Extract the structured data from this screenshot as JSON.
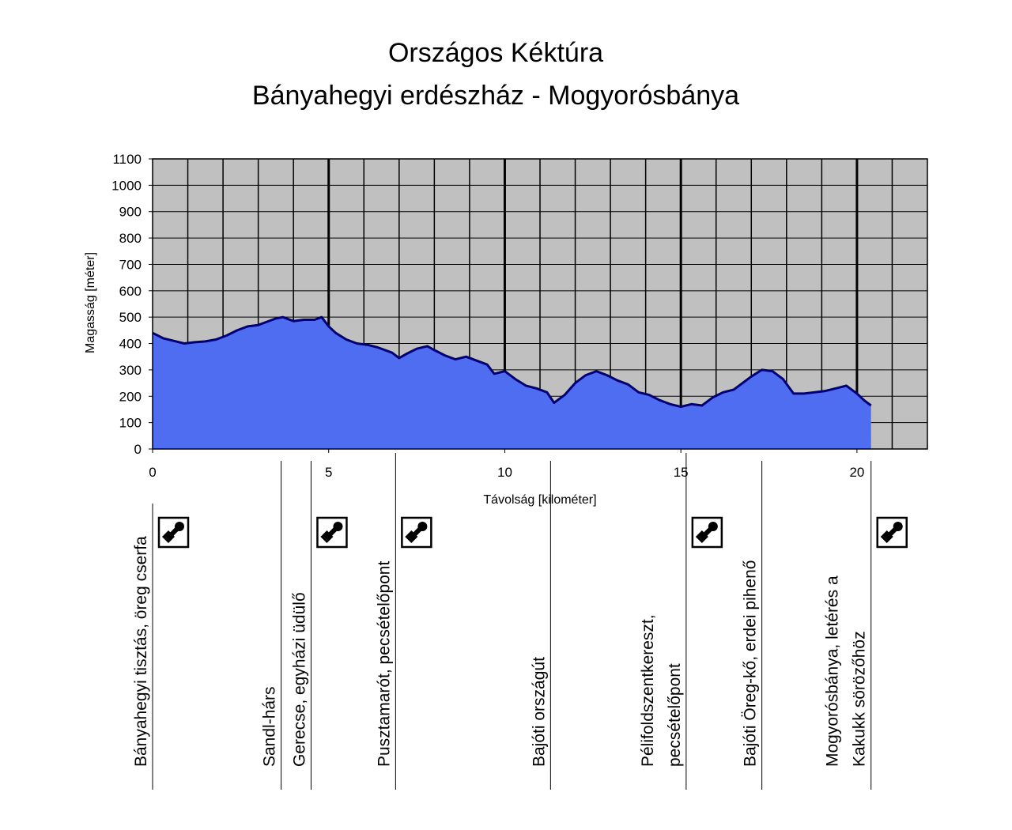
{
  "chart_data": {
    "type": "area",
    "title": "Országos Kéktúra",
    "subtitle": "Bányahegyi erdészház - Mogyorósbánya",
    "xlabel": "Távolság [kilométer]",
    "ylabel": "Magasság [méter]",
    "xlim": [
      0,
      22
    ],
    "ylim": [
      0,
      1100
    ],
    "xticks": [
      0,
      5,
      10,
      15,
      20
    ],
    "yticks": [
      0,
      100,
      200,
      300,
      400,
      500,
      600,
      700,
      800,
      900,
      1000,
      1100
    ],
    "grid": "on",
    "colors": {
      "plot_bg": "#c0c0c0",
      "fill": "#4f6df0",
      "line": "#00007a",
      "grid": "#000000"
    },
    "series": [
      {
        "x": [
          0,
          0.3,
          0.6,
          0.9,
          1.2,
          1.5,
          1.8,
          2.1,
          2.4,
          2.7,
          3.0,
          3.2,
          3.5,
          3.7,
          4.0,
          4.3,
          4.6,
          4.8,
          5.0,
          5.2,
          5.5,
          5.8,
          6.1,
          6.4,
          6.8,
          7.0,
          7.2,
          7.5,
          7.8,
          8.0,
          8.3,
          8.6,
          8.9,
          9.2,
          9.5,
          9.7,
          10.0,
          10.3,
          10.6,
          10.9,
          11.2,
          11.4,
          11.7,
          12.0,
          12.3,
          12.6,
          12.9,
          13.2,
          13.5,
          13.8,
          14.1,
          14.4,
          14.7,
          15.0,
          15.3,
          15.6,
          15.9,
          16.2,
          16.5,
          16.8,
          17.0,
          17.3,
          17.6,
          17.9,
          18.2,
          18.5,
          18.8,
          19.1,
          19.4,
          19.7,
          20.0,
          20.2,
          20.4
        ],
        "y": [
          440,
          420,
          410,
          400,
          405,
          408,
          415,
          430,
          450,
          465,
          470,
          480,
          495,
          500,
          485,
          490,
          490,
          500,
          465,
          440,
          415,
          400,
          395,
          385,
          365,
          345,
          360,
          380,
          390,
          375,
          355,
          340,
          350,
          335,
          320,
          285,
          295,
          265,
          240,
          230,
          215,
          175,
          205,
          250,
          280,
          295,
          280,
          260,
          245,
          215,
          205,
          185,
          170,
          160,
          170,
          165,
          195,
          215,
          225,
          255,
          275,
          300,
          295,
          265,
          210,
          210,
          215,
          220,
          230,
          240,
          210,
          185,
          165
        ]
      }
    ],
    "waypoints": [
      {
        "km": 0.0,
        "lines": [
          "Bányahegyi tisztás, öreg cserfa"
        ],
        "stamp": true,
        "line_top": 637
      },
      {
        "km": 3.65,
        "lines": [
          "Sandl-hárs"
        ],
        "stamp": false,
        "line_top": 583
      },
      {
        "km": 4.5,
        "lines": [
          "Gerecse, egyházi üdülő"
        ],
        "stamp": true,
        "line_top": 583
      },
      {
        "km": 6.9,
        "lines": [
          "Pusztamarót, pecsételőpont"
        ],
        "stamp": true,
        "line_top": 573
      },
      {
        "km": 11.3,
        "lines": [
          "Bajóti országút"
        ],
        "stamp": false,
        "line_top": 583
      },
      {
        "km": 15.15,
        "lines": [
          "Pélifoldszentkereszt,",
          "pecsételőpont"
        ],
        "stamp": true,
        "line_top": 573
      },
      {
        "km": 17.3,
        "lines": [
          "Bajóti Öreg-kő, erdei pihenő"
        ],
        "stamp": false,
        "line_top": 583
      },
      {
        "km": 20.4,
        "lines": [
          "Mogyorósbánya, letérés a",
          "Kakukk sörözőhöz"
        ],
        "stamp": true,
        "line_top": 583
      }
    ]
  }
}
